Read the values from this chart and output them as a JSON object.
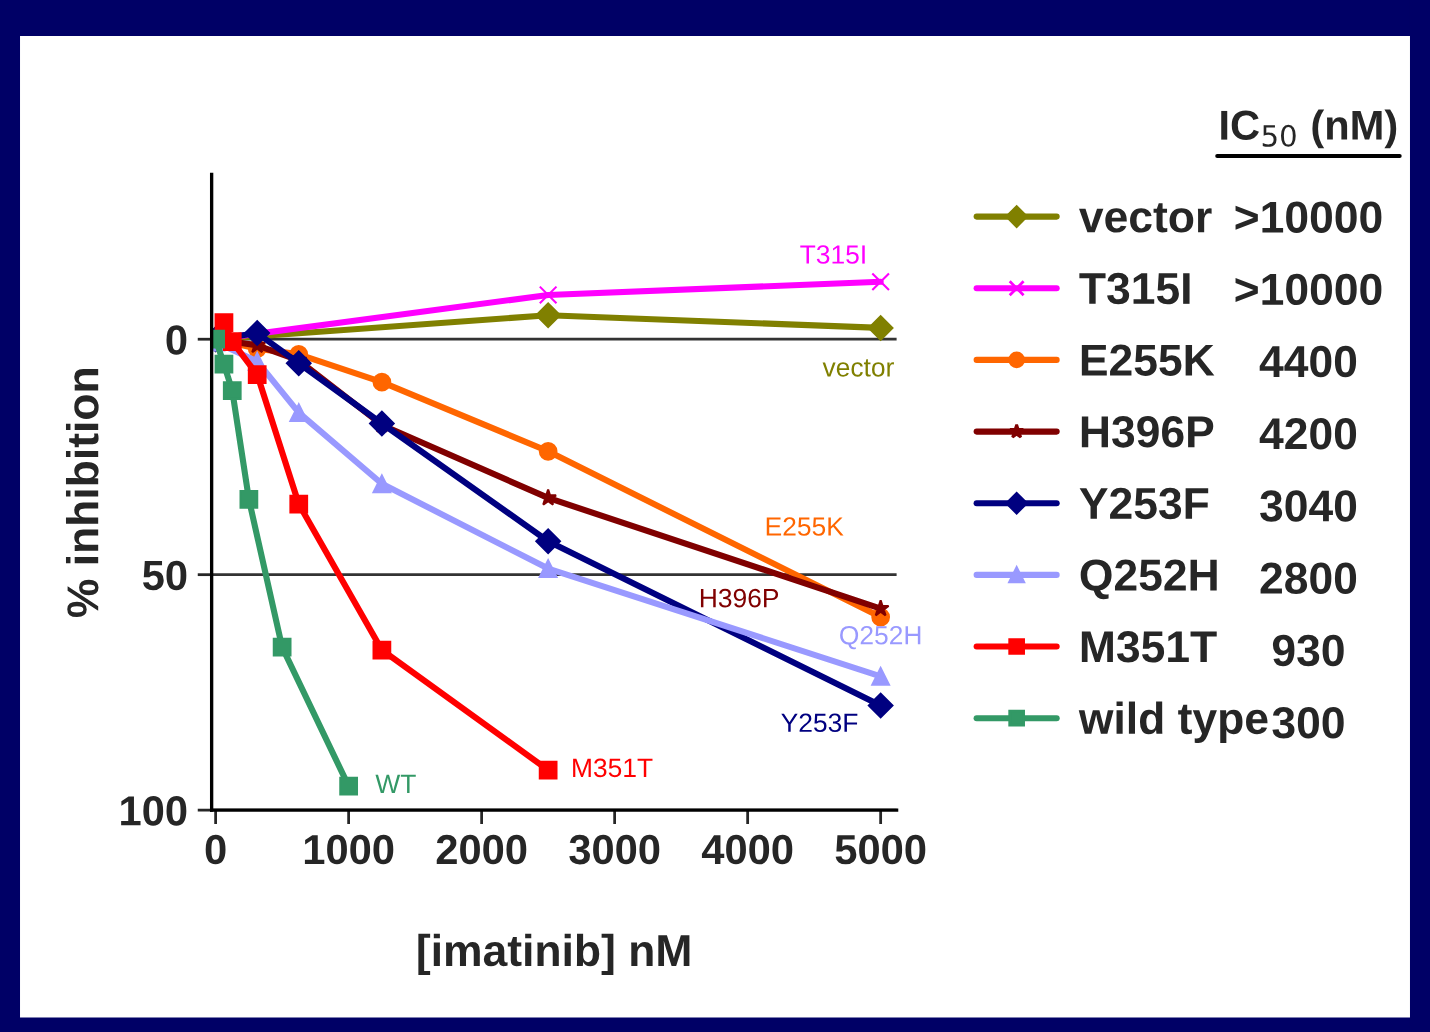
{
  "chart_data": {
    "type": "line",
    "xlabel": "[imatinib] nM",
    "ylabel": "% inhibition",
    "xlim": [
      -30,
      5120
    ],
    "xticks": [
      0,
      1000,
      2000,
      3000,
      4000,
      5000
    ],
    "ylim": [
      100,
      -35
    ],
    "yticks": [
      0,
      50,
      100
    ],
    "grid": "y",
    "legend": "right",
    "series": [
      {
        "name": "vector",
        "color": "#808000",
        "marker": "diamond",
        "x": [
          0,
          2500,
          5000
        ],
        "values": [
          0,
          -5.1,
          -2.4
        ]
      },
      {
        "name": "T315I",
        "color": "#ff00ff",
        "marker": "cross",
        "x": [
          0,
          2500,
          5000
        ],
        "values": [
          0,
          -9.4,
          -12.2
        ]
      },
      {
        "name": "E255K",
        "color": "#ff6600",
        "marker": "circle",
        "x": [
          0,
          312.5,
          625,
          1250,
          2500,
          5000
        ],
        "values": [
          0,
          2,
          3.2,
          9.1,
          23.8,
          59
        ]
      },
      {
        "name": "H396P",
        "color": "#800000",
        "marker": "star",
        "x": [
          0,
          312.5,
          625,
          1250,
          2500,
          5000
        ],
        "values": [
          0,
          1.3,
          4.5,
          18.2,
          33.7,
          57.2
        ]
      },
      {
        "name": "Y253F",
        "color": "#000080",
        "marker": "diamond",
        "x": [
          0,
          312.5,
          625,
          1250,
          2500,
          5000
        ],
        "values": [
          0,
          -1.3,
          5.1,
          17.9,
          42.9,
          77.8
        ]
      },
      {
        "name": "Q252H",
        "color": "#9999ff",
        "marker": "triangle",
        "x": [
          0,
          312.5,
          625,
          1250,
          2500,
          5000
        ],
        "values": [
          0.6,
          4.7,
          15.6,
          30.7,
          48.7,
          71.6
        ]
      },
      {
        "name": "M351T",
        "color": "#ff0000",
        "marker": "square",
        "x": [
          62.5,
          125,
          312.5,
          625,
          1250,
          2500
        ],
        "values": [
          -3.5,
          0.5,
          7.5,
          35,
          66,
          91.5
        ]
      },
      {
        "name": "wild type",
        "color": "#339966",
        "marker": "square",
        "x": [
          0,
          62.5,
          125,
          250,
          500,
          1000
        ],
        "values": [
          0,
          5.3,
          10.9,
          34,
          65.4,
          94.9
        ]
      }
    ],
    "annotations": [
      {
        "text": "vector",
        "x": 5000,
        "y": -2.4
      },
      {
        "text": "T315I",
        "x": 5000,
        "y": -12.2
      },
      {
        "text": "E255K",
        "x": 4300,
        "y": 49.1
      },
      {
        "text": "H396P",
        "x": 3936,
        "y": 47.2
      },
      {
        "text": "Y253F",
        "x": 5000,
        "y": 77.8
      },
      {
        "text": "Q252H",
        "x": 5000,
        "y": 71.6
      },
      {
        "text": "M351T",
        "x": 2500,
        "y": 91.5
      },
      {
        "text": "WT",
        "x": 1000,
        "y": 94.9
      },
      "IC$_{50}$ (nM)",
      ">10000",
      ">10000",
      "4400",
      "4200",
      "3040",
      "2800",
      "930",
      "300"
    ]
  }
}
